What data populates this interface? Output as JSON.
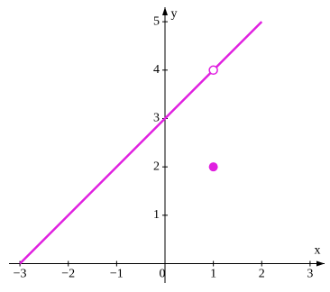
{
  "chart_data": {
    "type": "line",
    "x_label": "x",
    "y_label": "y",
    "xlim": [
      -3.3,
      3.3
    ],
    "ylim": [
      -0.4,
      5.3
    ],
    "xticks": [
      {
        "value": -3,
        "label": "−3"
      },
      {
        "value": -2,
        "label": "−2"
      },
      {
        "value": -1,
        "label": "−1"
      },
      0,
      1,
      2,
      3
    ],
    "yticks": [
      1,
      2,
      3,
      4,
      5
    ],
    "series": [
      {
        "color": "#e020e0",
        "style": "line",
        "x": [
          -3,
          2
        ],
        "values": [
          0,
          5
        ]
      },
      {
        "color": "#e020e0",
        "style": "open-point",
        "x": [
          1
        ],
        "values": [
          4
        ]
      },
      {
        "color": "#e020e0",
        "style": "point",
        "x": [
          1
        ],
        "values": [
          2
        ]
      }
    ]
  }
}
